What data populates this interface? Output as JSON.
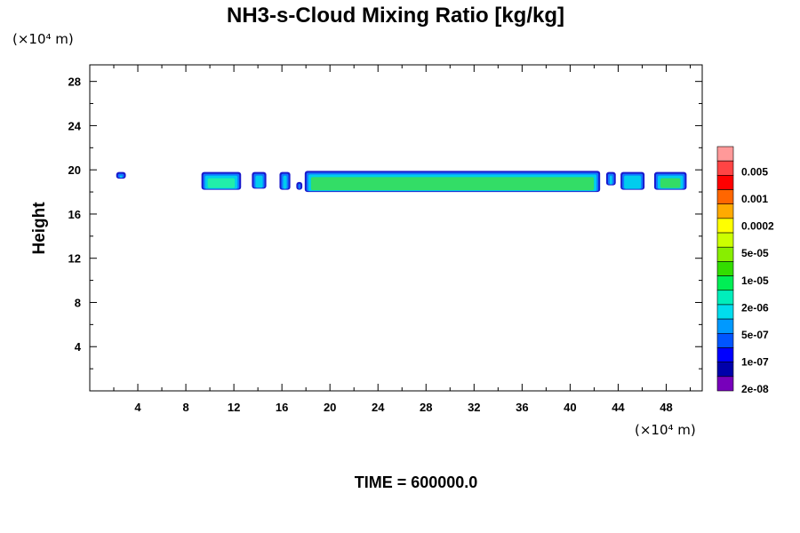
{
  "chart_data": {
    "type": "heatmap",
    "title": "NH3-s-Cloud Mixing Ratio [kg/kg]",
    "xlabel": "",
    "ylabel": "Height",
    "x_unit": "(×10⁴ m)",
    "y_unit": "(×10⁴ m)",
    "xlim": [
      0,
      51
    ],
    "ylim": [
      0,
      29.5
    ],
    "x_ticks": [
      4,
      8,
      12,
      16,
      20,
      24,
      28,
      32,
      36,
      40,
      44,
      48
    ],
    "y_ticks": [
      4,
      8,
      12,
      16,
      20,
      24,
      28
    ],
    "footer": "TIME = 600000.0",
    "colorbar": {
      "labels": [
        "0.005",
        "0.001",
        "0.0002",
        "5e-05",
        "1e-05",
        "2e-06",
        "5e-07",
        "1e-07",
        "2e-08"
      ],
      "colors": [
        "#ff9999",
        "#ff4444",
        "#ff0000",
        "#ff6600",
        "#ffaa00",
        "#ffff00",
        "#ccff00",
        "#88ee00",
        "#33dd00",
        "#00ee55",
        "#00eebb",
        "#00ddee",
        "#0099ff",
        "#0055ff",
        "#0000ff",
        "#0000aa",
        "#7700bb"
      ]
    },
    "cloud_layer": {
      "y_range": [
        18.0,
        19.9
      ],
      "cells": [
        {
          "x": [
            2.2,
            3.0
          ],
          "y": [
            19.2,
            19.8
          ],
          "level": "2e-08"
        },
        {
          "x": [
            9.3,
            12.6
          ],
          "y": [
            18.2,
            19.8
          ],
          "level": "2e-06"
        },
        {
          "x": [
            13.5,
            14.7
          ],
          "y": [
            18.3,
            19.8
          ],
          "level": "5e-07"
        },
        {
          "x": [
            15.8,
            16.7
          ],
          "y": [
            18.2,
            19.8
          ],
          "level": "2e-06"
        },
        {
          "x": [
            17.2,
            17.7
          ],
          "y": [
            18.2,
            18.9
          ],
          "level": "5e-07"
        },
        {
          "x": [
            17.9,
            42.5
          ],
          "y": [
            18.0,
            19.9
          ],
          "level": "1e-05"
        },
        {
          "x": [
            43.0,
            43.8
          ],
          "y": [
            18.6,
            19.8
          ],
          "level": "1e-07"
        },
        {
          "x": [
            44.2,
            46.2
          ],
          "y": [
            18.2,
            19.8
          ],
          "level": "5e-07"
        },
        {
          "x": [
            47.0,
            49.7
          ],
          "y": [
            18.2,
            19.8
          ],
          "level": "1e-05"
        }
      ]
    }
  }
}
